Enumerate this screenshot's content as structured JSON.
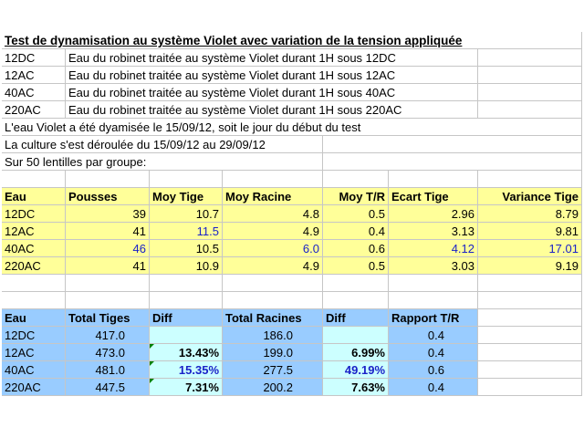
{
  "title": "Test de dynamisation au système Violet avec variation de la tension appliquée",
  "descriptions": [
    {
      "code": "12DC",
      "text": "Eau du robinet traitée au système Violet durant 1H sous 12DC"
    },
    {
      "code": "12AC",
      "text": "Eau du robinet traitée au système Violet durant 1H sous 12AC"
    },
    {
      "code": "40AC",
      "text": "Eau du robinet traitée au système Violet durant 1H sous 40AC"
    },
    {
      "code": "220AC",
      "text": "Eau du robinet traitée au système Violet durant 1H sous 220AC"
    }
  ],
  "notes": [
    "L'eau Violet a été dyamisée le 15/09/12, soit le jour du début du test",
    "La culture s'est déroulée du 15/09/12 au 29/09/12",
    "Sur 50 lentilles par groupe:"
  ],
  "table1": {
    "headers": [
      "Eau",
      "Pousses",
      "Moy Tige",
      "Moy Racine",
      "Moy T/R",
      "Ecart Tige",
      "Variance Tige"
    ],
    "rows": [
      [
        "12DC",
        "39",
        "10.7",
        "4.8",
        "0.5",
        "2.96",
        "8.79"
      ],
      [
        "12AC",
        "41",
        "11.5",
        "4.9",
        "0.4",
        "3.13",
        "9.81"
      ],
      [
        "40AC",
        "46",
        "10.5",
        "6.0",
        "0.6",
        "4.12",
        "17.01"
      ],
      [
        "220AC",
        "41",
        "10.9",
        "4.9",
        "0.5",
        "3.03",
        "9.19"
      ]
    ]
  },
  "table2": {
    "headers": [
      "Eau",
      "Total Tiges",
      "Diff",
      "Total Racines",
      "Diff",
      "Rapport T/R"
    ],
    "rows": [
      [
        "12DC",
        "417.0",
        "",
        "186.0",
        "",
        "0.4"
      ],
      [
        "12AC",
        "473.0",
        "13.43%",
        "199.0",
        "6.99%",
        "0.4"
      ],
      [
        "40AC",
        "481.0",
        "15.35%",
        "277.5",
        "49.19%",
        "0.6"
      ],
      [
        "220AC",
        "447.5",
        "7.31%",
        "200.2",
        "7.63%",
        "0.4"
      ]
    ]
  },
  "colors": {
    "header_fill": "#ffff99",
    "table2_header_fill": "#99ccff",
    "diff_fill": "#ccffff",
    "highlight_text": "#1a22c8",
    "grid": "#c6c6c6"
  }
}
